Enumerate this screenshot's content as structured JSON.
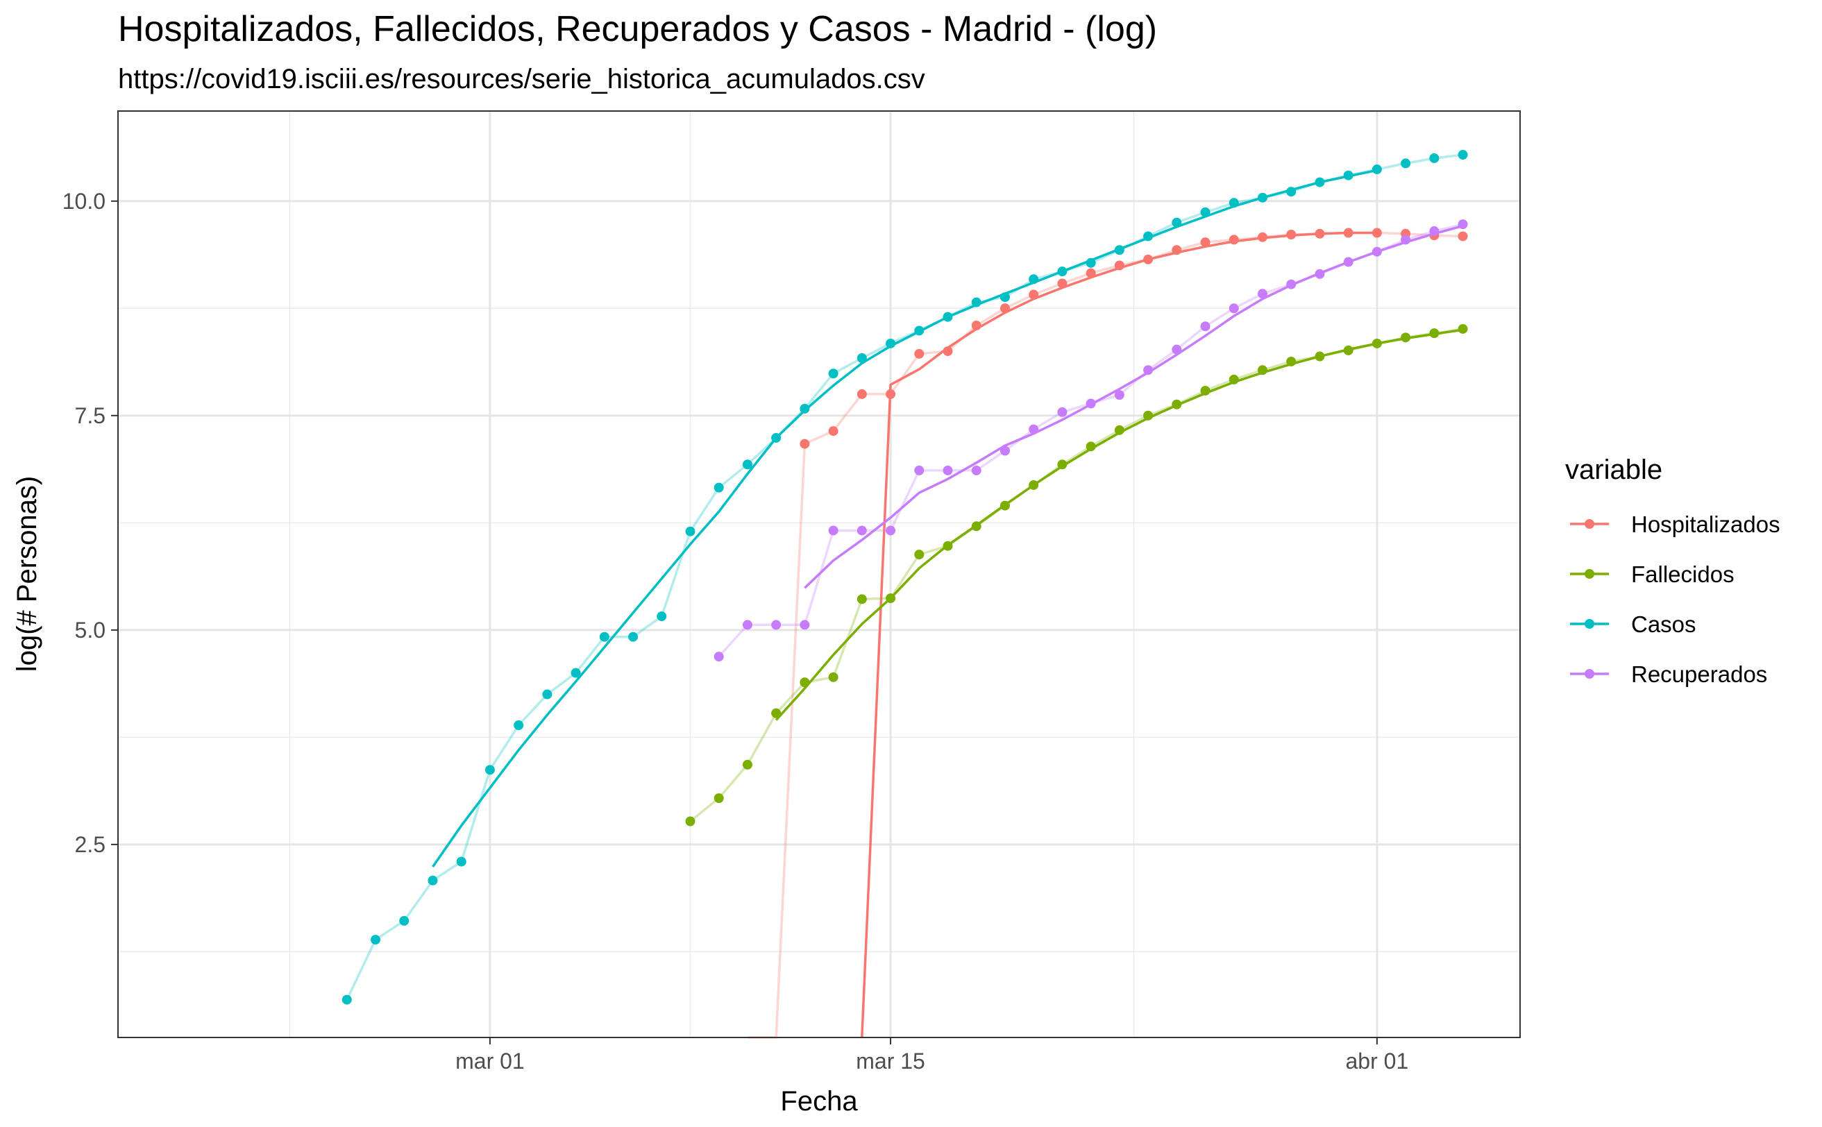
{
  "chart_data": {
    "type": "line",
    "title": "Hospitalizados, Fallecidos, Recuperados y Casos - Madrid - (log)",
    "subtitle": "https://covid19.isciii.es/resources/serie_historica_acumulados.csv",
    "xlabel": "Fecha",
    "ylabel": "log(# Personas)",
    "x_ticks": [
      {
        "date": "2020-03-01",
        "label": "mar 01"
      },
      {
        "date": "2020-03-15",
        "label": "mar 15"
      },
      {
        "date": "2020-04-01",
        "label": "abr 01"
      }
    ],
    "y_ticks": [
      {
        "value": 2.5,
        "label": "2.5"
      },
      {
        "value": 5.0,
        "label": "5.0"
      },
      {
        "value": 7.5,
        "label": "7.5"
      },
      {
        "value": 10.0,
        "label": "10.0"
      }
    ],
    "xlim": [
      "2020-02-17",
      "2020-04-06"
    ],
    "ylim": [
      0.25,
      11.05
    ],
    "grid": true,
    "legend": {
      "title": "variable",
      "position": "right"
    },
    "series": [
      {
        "name": "Hospitalizados",
        "color": "#F8766D",
        "points": [
          [
            "2020-03-10",
            0.0
          ],
          [
            "2020-03-11",
            0.0
          ],
          [
            "2020-03-12",
            7.17
          ],
          [
            "2020-03-13",
            7.32
          ],
          [
            "2020-03-14",
            7.75
          ],
          [
            "2020-03-15",
            7.75
          ],
          [
            "2020-03-16",
            8.22
          ],
          [
            "2020-03-17",
            8.25
          ],
          [
            "2020-03-18",
            8.55
          ],
          [
            "2020-03-19",
            8.75
          ],
          [
            "2020-03-20",
            8.91
          ],
          [
            "2020-03-21",
            9.04
          ],
          [
            "2020-03-22",
            9.16
          ],
          [
            "2020-03-23",
            9.25
          ],
          [
            "2020-03-24",
            9.32
          ],
          [
            "2020-03-25",
            9.43
          ],
          [
            "2020-03-26",
            9.52
          ],
          [
            "2020-03-27",
            9.55
          ],
          [
            "2020-03-28",
            9.58
          ],
          [
            "2020-03-29",
            9.61
          ],
          [
            "2020-03-30",
            9.62
          ],
          [
            "2020-03-31",
            9.63
          ],
          [
            "2020-04-01",
            9.63
          ],
          [
            "2020-04-02",
            9.62
          ],
          [
            "2020-04-03",
            9.6
          ],
          [
            "2020-04-04",
            9.59
          ]
        ],
        "smooth": [
          [
            "2020-03-14",
            0.0
          ],
          [
            "2020-03-15",
            7.86
          ],
          [
            "2020-03-16",
            8.04
          ],
          [
            "2020-03-17",
            8.29
          ],
          [
            "2020-03-18",
            8.51
          ],
          [
            "2020-03-19",
            8.7
          ],
          [
            "2020-03-20",
            8.86
          ],
          [
            "2020-03-21",
            8.99
          ],
          [
            "2020-03-22",
            9.11
          ],
          [
            "2020-03-23",
            9.22
          ],
          [
            "2020-03-24",
            9.32
          ],
          [
            "2020-03-25",
            9.4
          ],
          [
            "2020-03-26",
            9.47
          ],
          [
            "2020-03-27",
            9.53
          ],
          [
            "2020-03-28",
            9.57
          ],
          [
            "2020-03-29",
            9.6
          ],
          [
            "2020-03-30",
            9.62
          ],
          [
            "2020-03-31",
            9.63
          ],
          [
            "2020-04-01",
            9.63
          ]
        ]
      },
      {
        "name": "Fallecidos",
        "color": "#7CAE00",
        "points": [
          [
            "2020-03-08",
            2.77
          ],
          [
            "2020-03-09",
            3.04
          ],
          [
            "2020-03-10",
            3.43
          ],
          [
            "2020-03-11",
            4.03
          ],
          [
            "2020-03-12",
            4.39
          ],
          [
            "2020-03-13",
            4.45
          ],
          [
            "2020-03-14",
            5.36
          ],
          [
            "2020-03-15",
            5.37
          ],
          [
            "2020-03-16",
            5.88
          ],
          [
            "2020-03-17",
            5.98
          ],
          [
            "2020-03-18",
            6.21
          ],
          [
            "2020-03-19",
            6.45
          ],
          [
            "2020-03-20",
            6.69
          ],
          [
            "2020-03-21",
            6.93
          ],
          [
            "2020-03-22",
            7.14
          ],
          [
            "2020-03-23",
            7.33
          ],
          [
            "2020-03-24",
            7.5
          ],
          [
            "2020-03-25",
            7.63
          ],
          [
            "2020-03-26",
            7.79
          ],
          [
            "2020-03-27",
            7.92
          ],
          [
            "2020-03-28",
            8.03
          ],
          [
            "2020-03-29",
            8.13
          ],
          [
            "2020-03-30",
            8.19
          ],
          [
            "2020-03-31",
            8.26
          ],
          [
            "2020-04-01",
            8.34
          ],
          [
            "2020-04-02",
            8.41
          ],
          [
            "2020-04-03",
            8.46
          ],
          [
            "2020-04-04",
            8.51
          ]
        ],
        "smooth": [
          [
            "2020-03-11",
            3.95
          ],
          [
            "2020-03-12",
            4.32
          ],
          [
            "2020-03-13",
            4.71
          ],
          [
            "2020-03-14",
            5.07
          ],
          [
            "2020-03-15",
            5.37
          ],
          [
            "2020-03-16",
            5.72
          ],
          [
            "2020-03-17",
            5.99
          ],
          [
            "2020-03-18",
            6.22
          ],
          [
            "2020-03-19",
            6.46
          ],
          [
            "2020-03-20",
            6.69
          ],
          [
            "2020-03-21",
            6.91
          ],
          [
            "2020-03-22",
            7.11
          ],
          [
            "2020-03-23",
            7.3
          ],
          [
            "2020-03-24",
            7.47
          ],
          [
            "2020-03-25",
            7.62
          ],
          [
            "2020-03-26",
            7.76
          ],
          [
            "2020-03-27",
            7.89
          ],
          [
            "2020-03-28",
            8.0
          ],
          [
            "2020-03-29",
            8.1
          ],
          [
            "2020-03-30",
            8.19
          ],
          [
            "2020-03-31",
            8.27
          ],
          [
            "2020-04-01",
            8.34
          ],
          [
            "2020-04-02",
            8.4
          ],
          [
            "2020-04-03",
            8.45
          ],
          [
            "2020-04-04",
            8.5
          ]
        ]
      },
      {
        "name": "Casos",
        "color": "#00BFC4",
        "points": [
          [
            "2020-02-25",
            0.69
          ],
          [
            "2020-02-26",
            1.39
          ],
          [
            "2020-02-27",
            1.61
          ],
          [
            "2020-02-28",
            2.08
          ],
          [
            "2020-02-29",
            2.3
          ],
          [
            "2020-03-01",
            3.37
          ],
          [
            "2020-03-02",
            3.89
          ],
          [
            "2020-03-03",
            4.25
          ],
          [
            "2020-03-04",
            4.5
          ],
          [
            "2020-03-05",
            4.92
          ],
          [
            "2020-03-06",
            4.92
          ],
          [
            "2020-03-07",
            5.16
          ],
          [
            "2020-03-08",
            6.15
          ],
          [
            "2020-03-09",
            6.66
          ],
          [
            "2020-03-10",
            6.93
          ],
          [
            "2020-03-11",
            7.24
          ],
          [
            "2020-03-12",
            7.58
          ],
          [
            "2020-03-13",
            7.99
          ],
          [
            "2020-03-14",
            8.17
          ],
          [
            "2020-03-15",
            8.34
          ],
          [
            "2020-03-16",
            8.49
          ],
          [
            "2020-03-17",
            8.65
          ],
          [
            "2020-03-18",
            8.82
          ],
          [
            "2020-03-19",
            8.88
          ],
          [
            "2020-03-20",
            9.09
          ],
          [
            "2020-03-21",
            9.18
          ],
          [
            "2020-03-22",
            9.28
          ],
          [
            "2020-03-23",
            9.43
          ],
          [
            "2020-03-24",
            9.59
          ],
          [
            "2020-03-25",
            9.75
          ],
          [
            "2020-03-26",
            9.87
          ],
          [
            "2020-03-27",
            9.98
          ],
          [
            "2020-03-28",
            10.04
          ],
          [
            "2020-03-29",
            10.11
          ],
          [
            "2020-03-30",
            10.22
          ],
          [
            "2020-03-31",
            10.3
          ],
          [
            "2020-04-01",
            10.37
          ],
          [
            "2020-04-02",
            10.44
          ],
          [
            "2020-04-03",
            10.5
          ],
          [
            "2020-04-04",
            10.54
          ]
        ],
        "smooth": [
          [
            "2020-02-28",
            2.24
          ],
          [
            "2020-02-29",
            2.72
          ],
          [
            "2020-03-01",
            3.16
          ],
          [
            "2020-03-02",
            3.6
          ],
          [
            "2020-03-03",
            4.01
          ],
          [
            "2020-03-04",
            4.4
          ],
          [
            "2020-03-05",
            4.8
          ],
          [
            "2020-03-06",
            5.2
          ],
          [
            "2020-03-07",
            5.6
          ],
          [
            "2020-03-08",
            6.0
          ],
          [
            "2020-03-09",
            6.38
          ],
          [
            "2020-03-10",
            6.82
          ],
          [
            "2020-03-11",
            7.24
          ],
          [
            "2020-03-12",
            7.56
          ],
          [
            "2020-03-13",
            7.85
          ],
          [
            "2020-03-14",
            8.11
          ],
          [
            "2020-03-15",
            8.31
          ],
          [
            "2020-03-16",
            8.48
          ],
          [
            "2020-03-17",
            8.65
          ],
          [
            "2020-03-18",
            8.79
          ],
          [
            "2020-03-19",
            8.92
          ],
          [
            "2020-03-20",
            9.05
          ],
          [
            "2020-03-21",
            9.18
          ],
          [
            "2020-03-22",
            9.31
          ],
          [
            "2020-03-23",
            9.44
          ],
          [
            "2020-03-24",
            9.57
          ],
          [
            "2020-03-25",
            9.7
          ],
          [
            "2020-03-26",
            9.82
          ],
          [
            "2020-03-27",
            9.94
          ],
          [
            "2020-03-28",
            10.04
          ],
          [
            "2020-03-29",
            10.13
          ],
          [
            "2020-03-30",
            10.22
          ],
          [
            "2020-03-31",
            10.29
          ],
          [
            "2020-04-01",
            10.36
          ]
        ]
      },
      {
        "name": "Recuperados",
        "color": "#C77CFF",
        "points": [
          [
            "2020-03-09",
            4.69
          ],
          [
            "2020-03-10",
            5.06
          ],
          [
            "2020-03-11",
            5.06
          ],
          [
            "2020-03-12",
            5.06
          ],
          [
            "2020-03-13",
            6.16
          ],
          [
            "2020-03-14",
            6.16
          ],
          [
            "2020-03-15",
            6.16
          ],
          [
            "2020-03-16",
            6.86
          ],
          [
            "2020-03-17",
            6.86
          ],
          [
            "2020-03-18",
            6.86
          ],
          [
            "2020-03-19",
            7.09
          ],
          [
            "2020-03-20",
            7.34
          ],
          [
            "2020-03-21",
            7.54
          ],
          [
            "2020-03-22",
            7.64
          ],
          [
            "2020-03-23",
            7.74
          ],
          [
            "2020-03-24",
            8.03
          ],
          [
            "2020-03-25",
            8.27
          ],
          [
            "2020-03-26",
            8.54
          ],
          [
            "2020-03-27",
            8.75
          ],
          [
            "2020-03-28",
            8.92
          ],
          [
            "2020-03-29",
            9.03
          ],
          [
            "2020-03-30",
            9.15
          ],
          [
            "2020-03-31",
            9.29
          ],
          [
            "2020-04-01",
            9.41
          ],
          [
            "2020-04-02",
            9.55
          ],
          [
            "2020-04-03",
            9.65
          ],
          [
            "2020-04-04",
            9.73
          ]
        ],
        "smooth": [
          [
            "2020-03-12",
            5.49
          ],
          [
            "2020-03-13",
            5.81
          ],
          [
            "2020-03-14",
            6.05
          ],
          [
            "2020-03-15",
            6.31
          ],
          [
            "2020-03-16",
            6.6
          ],
          [
            "2020-03-17",
            6.76
          ],
          [
            "2020-03-18",
            6.95
          ],
          [
            "2020-03-19",
            7.15
          ],
          [
            "2020-03-20",
            7.29
          ],
          [
            "2020-03-21",
            7.45
          ],
          [
            "2020-03-22",
            7.63
          ],
          [
            "2020-03-23",
            7.81
          ],
          [
            "2020-03-24",
            8.0
          ],
          [
            "2020-03-25",
            8.21
          ],
          [
            "2020-03-26",
            8.43
          ],
          [
            "2020-03-27",
            8.66
          ],
          [
            "2020-03-28",
            8.86
          ],
          [
            "2020-03-29",
            9.02
          ],
          [
            "2020-03-30",
            9.16
          ],
          [
            "2020-03-31",
            9.29
          ],
          [
            "2020-04-01",
            9.41
          ],
          [
            "2020-04-02",
            9.52
          ],
          [
            "2020-04-03",
            9.62
          ],
          [
            "2020-04-04",
            9.71
          ]
        ]
      }
    ]
  }
}
